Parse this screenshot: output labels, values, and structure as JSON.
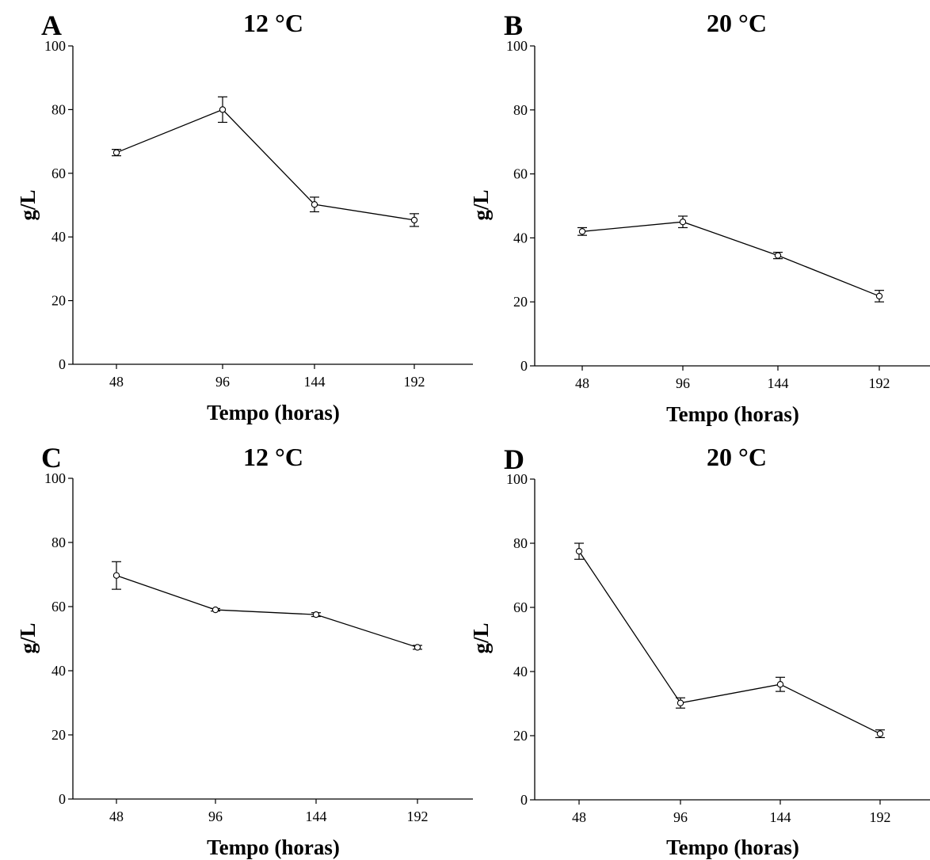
{
  "chart_data": [
    {
      "type": "line",
      "panel": "A",
      "title": "12 °C",
      "xlabel": "Tempo (horas)",
      "ylabel": "g/L",
      "categories": [
        "48",
        "96",
        "144",
        "192"
      ],
      "yticks": [
        "0",
        "20",
        "40",
        "60",
        "80",
        "100"
      ],
      "ylim": [
        0,
        100
      ],
      "grid": false,
      "values": [
        66.5,
        80,
        50.2,
        45.3
      ],
      "errors": [
        1.0,
        4.0,
        2.3,
        2.0
      ]
    },
    {
      "type": "line",
      "panel": "B",
      "title": "20 °C",
      "xlabel": "Tempo (horas)",
      "ylabel": "g/L",
      "categories": [
        "48",
        "96",
        "144",
        "192"
      ],
      "yticks": [
        "0",
        "20",
        "40",
        "60",
        "80",
        "100"
      ],
      "ylim": [
        0,
        100
      ],
      "grid": false,
      "values": [
        42.0,
        45.0,
        34.5,
        21.8
      ],
      "errors": [
        1.2,
        1.8,
        1.0,
        1.8
      ]
    },
    {
      "type": "line",
      "panel": "C",
      "title": "12 °C",
      "xlabel": "Tempo (horas)",
      "ylabel": "g/L",
      "categories": [
        "48",
        "96",
        "144",
        "192"
      ],
      "yticks": [
        "0",
        "20",
        "40",
        "60",
        "80",
        "100"
      ],
      "ylim": [
        0,
        100
      ],
      "grid": false,
      "values": [
        69.7,
        59.0,
        57.5,
        47.3
      ],
      "errors": [
        4.3,
        0.4,
        0.6,
        0.6
      ]
    },
    {
      "type": "line",
      "panel": "D",
      "title": "20 °C",
      "xlabel": "Tempo (horas)",
      "ylabel": "g/L",
      "categories": [
        "48",
        "96",
        "144",
        "192"
      ],
      "yticks": [
        "0",
        "20",
        "40",
        "60",
        "80",
        "100"
      ],
      "ylim": [
        0,
        100
      ],
      "grid": false,
      "values": [
        77.5,
        30.2,
        36.0,
        20.6
      ],
      "errors": [
        2.5,
        1.6,
        2.2,
        1.2
      ]
    }
  ]
}
